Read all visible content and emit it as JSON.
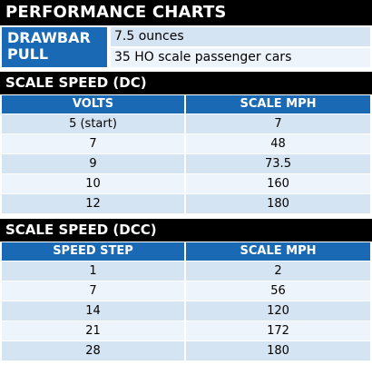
{
  "title": "PERFORMANCE CHARTS",
  "drawbar_pull": {
    "label": "DRAWBAR PULL",
    "weight": "7.5 ounces",
    "cars": "35 HO scale passenger cars"
  },
  "dc": {
    "section_title": "SCALE SPEED (DC)",
    "headers": [
      "VOLTS",
      "SCALE MPH"
    ],
    "rows": [
      [
        "5 (start)",
        "7"
      ],
      [
        "7",
        "48"
      ],
      [
        "9",
        "73.5"
      ],
      [
        "10",
        "160"
      ],
      [
        "12",
        "180"
      ]
    ]
  },
  "dcc": {
    "section_title": "SCALE SPEED (DCC)",
    "headers": [
      "SPEED STEP",
      "SCALE MPH"
    ],
    "rows": [
      [
        "1",
        "2"
      ],
      [
        "7",
        "56"
      ],
      [
        "14",
        "120"
      ],
      [
        "21",
        "172"
      ],
      [
        "28",
        "180"
      ]
    ]
  },
  "colors": {
    "header_blue": "#1a69b4",
    "row_light": "#d5e4f3",
    "row_lighter": "#eef4fb",
    "bar_black": "#000000"
  }
}
